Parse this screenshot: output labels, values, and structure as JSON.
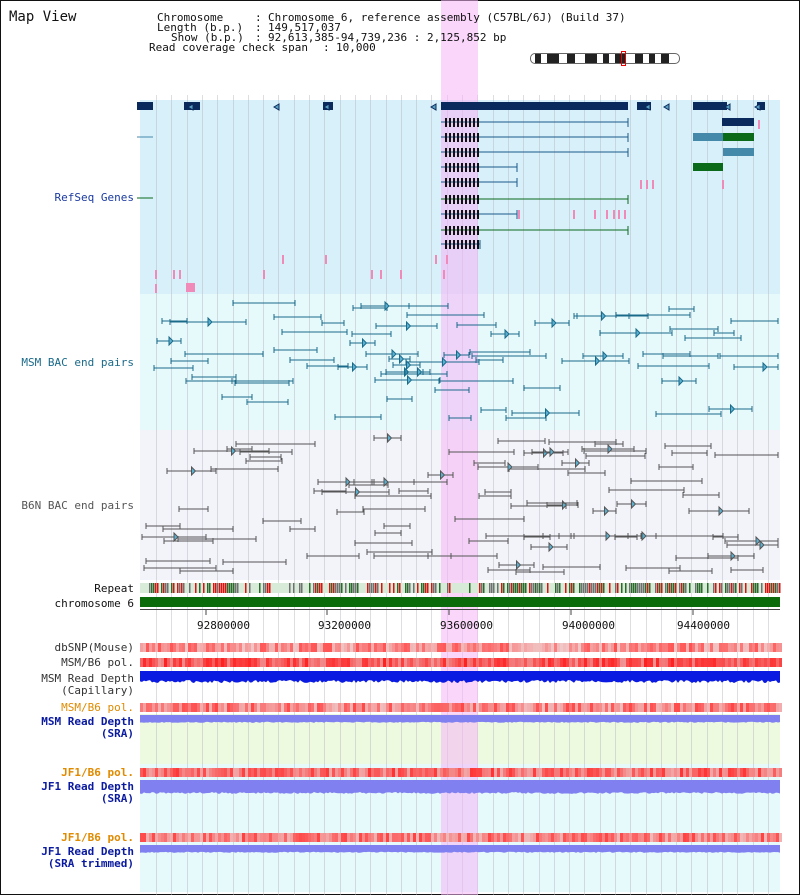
{
  "title": "Map View",
  "header": {
    "chromosome_label": "Chromosome",
    "chromosome_value": "Chromosome 6, reference assembly (C57BL/6J) (Build 37)",
    "length_label": "Length (b.p.)",
    "length_value": "149,517,037",
    "show_label": "Show (b.p.)",
    "show_value": "92,613,385-94,739,236 : 2,125,852 bp",
    "coverage_label": "Read coverage check span",
    "coverage_value": "10,000"
  },
  "tracks": {
    "refseq": "RefSeq Genes",
    "msm_bac": "MSM BAC end pairs",
    "b6n_bac": "B6N BAC end pairs",
    "repeat": "Repeat",
    "chromosome": "chromosome 6",
    "dbsnp": "dbSNP(Mouse)",
    "msm_b6_pol": "MSM/B6 pol.",
    "msm_depth_cap": "MSM Read Depth\n(Capillary)",
    "msm_b6_pol_sra": "MSM/B6 pol.",
    "msm_depth_sra": "MSM Read Depth\n(SRA)",
    "jf1_b6_pol": "JF1/B6 pol.",
    "jf1_depth_sra": "JF1 Read Depth\n(SRA)",
    "jf1_b6_pol_trim": "JF1/B6 pol.",
    "jf1_depth_trim": "JF1 Read Depth\n(SRA trimmed)"
  },
  "axis": {
    "ticks": [
      "92800000",
      "93200000",
      "93600000",
      "94000000",
      "94400000"
    ]
  },
  "colors": {
    "refseq_bg": "#d8f0fa",
    "msm_bg": "#e6fafc",
    "b6n_bg": "#f3f4fa",
    "gene_dark": "#0a2a5e",
    "gene_teal": "#4488aa",
    "gene_green": "#0a6a1a",
    "msm_line": "#1a6a8a",
    "b6n_line": "#555555",
    "chromosome_bar": "#0b6b0b",
    "highlight": "#f5b4f5",
    "depth_blue": "#0a1ae0",
    "depth_light": "#8080f0",
    "orange_label": "#e08a00",
    "navy_label": "#0a1aa0"
  }
}
